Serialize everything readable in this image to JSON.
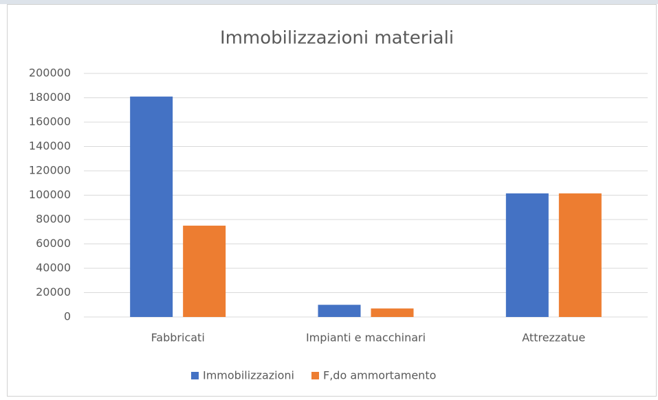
{
  "chart_data": {
    "type": "bar",
    "title": "Immobilizzazioni materiali",
    "categories": [
      "Fabbricati",
      "Impianti e macchinari",
      "Attrezzatue"
    ],
    "series": [
      {
        "name": "Immobilizzazioni",
        "color": "#4472c4",
        "values": [
          181000,
          10000,
          101500
        ]
      },
      {
        "name": "F,do ammortamento",
        "color": "#ed7d31",
        "values": [
          75000,
          7000,
          101500
        ]
      }
    ],
    "ylim": [
      0,
      200000
    ],
    "yticks": [
      0,
      20000,
      40000,
      60000,
      80000,
      100000,
      120000,
      140000,
      160000,
      180000,
      200000
    ],
    "grid": true,
    "legend": "bottom"
  }
}
